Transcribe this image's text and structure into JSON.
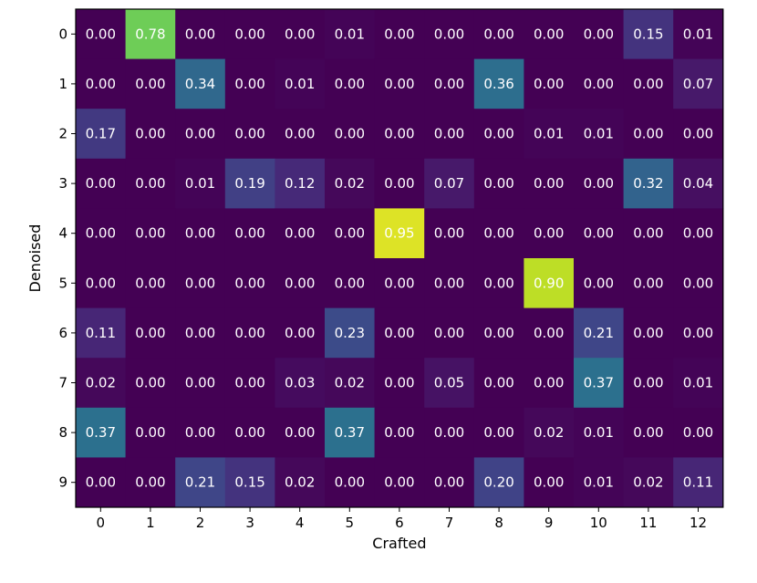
{
  "chart_data": {
    "type": "heatmap",
    "title": "",
    "xlabel": "Crafted",
    "ylabel": "Denoised",
    "x_categories": [
      "0",
      "1",
      "2",
      "3",
      "4",
      "5",
      "6",
      "7",
      "8",
      "9",
      "10",
      "11",
      "12"
    ],
    "y_categories": [
      "0",
      "1",
      "2",
      "3",
      "4",
      "5",
      "6",
      "7",
      "8",
      "9"
    ],
    "values": [
      [
        0.0,
        0.78,
        0.0,
        0.0,
        0.0,
        0.01,
        0.0,
        0.0,
        0.0,
        0.0,
        0.0,
        0.15,
        0.01
      ],
      [
        0.0,
        0.0,
        0.34,
        0.0,
        0.01,
        0.0,
        0.0,
        0.0,
        0.36,
        0.0,
        0.0,
        0.0,
        0.07
      ],
      [
        0.17,
        0.0,
        0.0,
        0.0,
        0.0,
        0.0,
        0.0,
        0.0,
        0.0,
        0.01,
        0.01,
        0.0,
        0.0
      ],
      [
        0.0,
        0.0,
        0.01,
        0.19,
        0.12,
        0.02,
        0.0,
        0.07,
        0.0,
        0.0,
        0.0,
        0.32,
        0.04
      ],
      [
        0.0,
        0.0,
        0.0,
        0.0,
        0.0,
        0.0,
        0.95,
        0.0,
        0.0,
        0.0,
        0.0,
        0.0,
        0.0
      ],
      [
        0.0,
        0.0,
        0.0,
        0.0,
        0.0,
        0.0,
        0.0,
        0.0,
        0.0,
        0.9,
        0.0,
        0.0,
        0.0
      ],
      [
        0.11,
        0.0,
        0.0,
        0.0,
        0.0,
        0.23,
        0.0,
        0.0,
        0.0,
        0.0,
        0.21,
        0.0,
        0.0
      ],
      [
        0.02,
        0.0,
        0.0,
        0.0,
        0.03,
        0.02,
        0.0,
        0.05,
        0.0,
        0.0,
        0.37,
        0.0,
        0.01
      ],
      [
        0.37,
        0.0,
        0.0,
        0.0,
        0.0,
        0.37,
        0.0,
        0.0,
        0.0,
        0.02,
        0.01,
        0.0,
        0.0
      ],
      [
        0.0,
        0.0,
        0.21,
        0.15,
        0.02,
        0.0,
        0.0,
        0.0,
        0.2,
        0.0,
        0.01,
        0.02,
        0.11
      ]
    ],
    "value_range": [
      0,
      1
    ],
    "colormap": "viridis",
    "grid": false,
    "cell_text_color": "#ffffff"
  }
}
